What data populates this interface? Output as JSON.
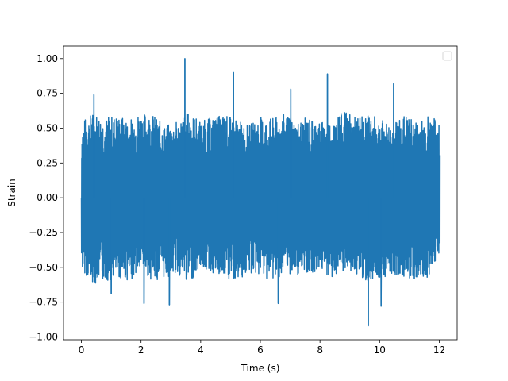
{
  "chart_data": {
    "type": "line",
    "title": "",
    "xlabel": "Time (s)",
    "ylabel": "Strain",
    "xlim": [
      -0.6,
      12.6
    ],
    "ylim": [
      -1.02,
      1.09
    ],
    "grid": false,
    "legend": {
      "placement": "top-right",
      "entries": []
    },
    "x_ticks": [
      {
        "value": 0,
        "label": "0"
      },
      {
        "value": 2,
        "label": "2"
      },
      {
        "value": 4,
        "label": "4"
      },
      {
        "value": 6,
        "label": "6"
      },
      {
        "value": 8,
        "label": "8"
      },
      {
        "value": 10,
        "label": "10"
      },
      {
        "value": 12,
        "label": "12"
      }
    ],
    "y_ticks": [
      {
        "value": -1.0,
        "label": "−1.00"
      },
      {
        "value": -0.75,
        "label": "−0.75"
      },
      {
        "value": -0.5,
        "label": "−0.50"
      },
      {
        "value": -0.25,
        "label": "−0.25"
      },
      {
        "value": 0.0,
        "label": "0.00"
      },
      {
        "value": 0.25,
        "label": "0.25"
      },
      {
        "value": 0.5,
        "label": "0.50"
      },
      {
        "value": 0.75,
        "label": "0.75"
      },
      {
        "value": 1.0,
        "label": "1.00"
      }
    ],
    "series": [
      {
        "color": "#1f77b4",
        "x": [
          0,
          0.4,
          0.8,
          1.2,
          1.6,
          2.0,
          2.4,
          2.8,
          3.2,
          3.6,
          4.0,
          4.4,
          4.8,
          5.2,
          5.6,
          6.0,
          6.4,
          6.8,
          7.2,
          7.6,
          8.0,
          8.4,
          8.8,
          9.2,
          9.6,
          10.0,
          10.4,
          10.8,
          11.2,
          11.6,
          12.0
        ],
        "y_upper": [
          0.55,
          0.62,
          0.58,
          0.6,
          0.56,
          0.63,
          0.6,
          0.52,
          0.55,
          0.62,
          0.55,
          0.58,
          0.6,
          0.56,
          0.52,
          0.58,
          0.57,
          0.6,
          0.55,
          0.58,
          0.55,
          0.56,
          0.62,
          0.58,
          0.6,
          0.57,
          0.52,
          0.6,
          0.55,
          0.6,
          0.55
        ],
        "y_lower": [
          -0.52,
          -0.62,
          -0.6,
          -0.58,
          -0.6,
          -0.52,
          -0.6,
          -0.58,
          -0.55,
          -0.62,
          -0.5,
          -0.55,
          -0.6,
          -0.6,
          -0.55,
          -0.56,
          -0.6,
          -0.55,
          -0.56,
          -0.55,
          -0.52,
          -0.58,
          -0.55,
          -0.55,
          -0.6,
          -0.58,
          -0.55,
          -0.57,
          -0.6,
          -0.58,
          -0.4
        ],
        "peaks": [
          {
            "x": 3.47,
            "y": 1.0
          },
          {
            "x": 5.1,
            "y": 0.9
          },
          {
            "x": 8.25,
            "y": 0.89
          },
          {
            "x": 7.02,
            "y": 0.78
          },
          {
            "x": 10.47,
            "y": 0.82
          },
          {
            "x": 0.42,
            "y": 0.74
          },
          {
            "x": 9.62,
            "y": -0.92
          },
          {
            "x": 2.1,
            "y": -0.76
          },
          {
            "x": 2.95,
            "y": -0.77
          },
          {
            "x": 6.6,
            "y": -0.76
          },
          {
            "x": 10.05,
            "y": -0.78
          },
          {
            "x": 1.0,
            "y": -0.69
          }
        ]
      }
    ]
  }
}
